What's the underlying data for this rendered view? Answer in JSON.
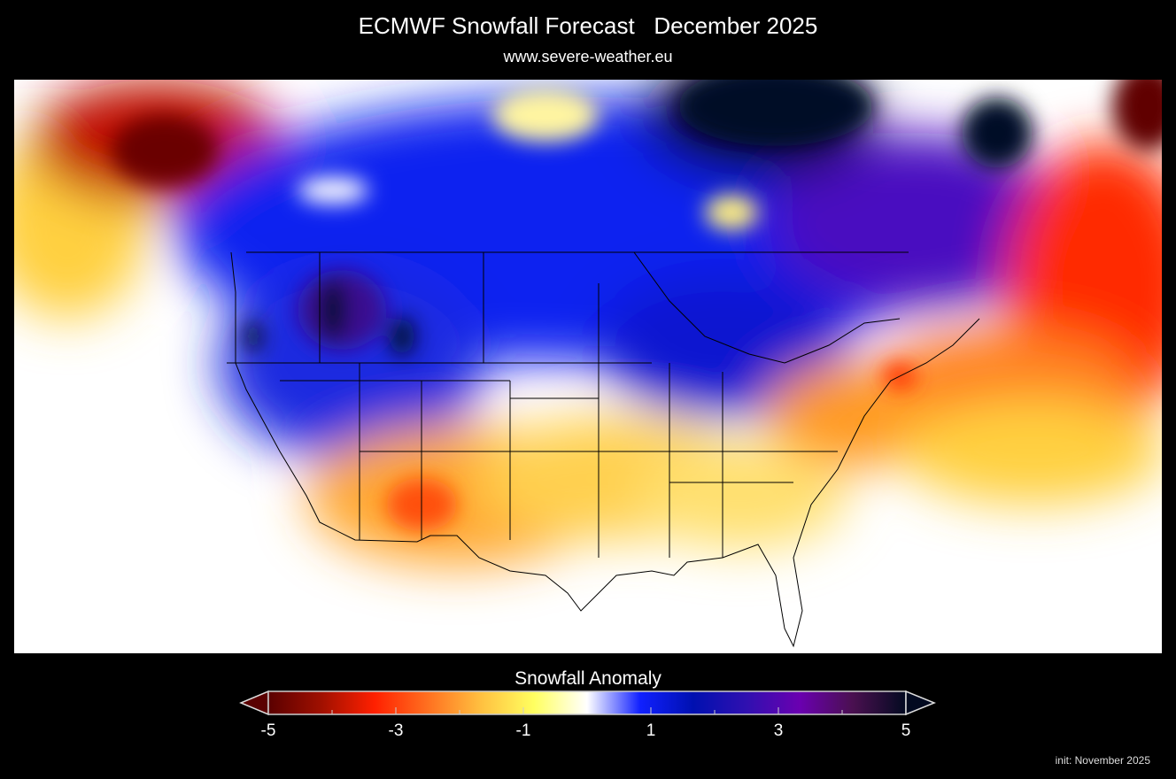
{
  "header": {
    "title": "ECMWF Snowfall Forecast   December 2025",
    "subtitle": "www.severe-weather.eu"
  },
  "map": {
    "region": "North America",
    "variable": "Snowfall Anomaly",
    "colors": {
      "strong_deficit": "#5a0000",
      "deficit": "#ff2000",
      "slight_deficit": "#ffb030",
      "neutral": "#ffffff",
      "surplus": "#1020ff",
      "strong_surplus": "#6a00b0",
      "extreme_surplus": "#020a20"
    }
  },
  "legend": {
    "title": "Snowfall Anomaly",
    "min": -5,
    "max": 5,
    "tick_labels": [
      "-5",
      "-3",
      "-1",
      "1",
      "3",
      "5"
    ],
    "extend": "both",
    "colors": [
      "#5a0000",
      "#a01000",
      "#ff2000",
      "#ff7020",
      "#ffc040",
      "#ffff60",
      "#ffffff",
      "#1020ff",
      "#0010b0",
      "#3010b0",
      "#6a00b0",
      "#4a1050",
      "#020a20"
    ]
  },
  "footer": {
    "init": "init: November 2025"
  }
}
